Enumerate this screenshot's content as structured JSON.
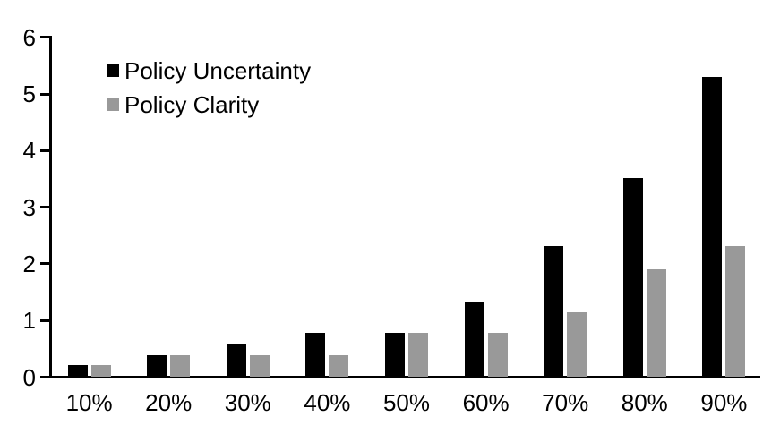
{
  "chart_data": {
    "type": "bar",
    "title": "",
    "xlabel": "",
    "ylabel": "",
    "categories": [
      "10%",
      "20%",
      "30%",
      "40%",
      "50%",
      "60%",
      "70%",
      "80%",
      "90%"
    ],
    "series": [
      {
        "name": "Policy Uncertainty",
        "color": "#000000",
        "values": [
          0.2,
          0.38,
          0.57,
          0.77,
          0.78,
          1.33,
          2.3,
          3.5,
          5.3
        ]
      },
      {
        "name": "Policy Clarity",
        "color": "#999999",
        "values": [
          0.2,
          0.38,
          0.38,
          0.38,
          0.77,
          0.77,
          1.13,
          1.9,
          2.3
        ]
      }
    ],
    "ylim": [
      0,
      6
    ],
    "yticks": [
      "0",
      "1",
      "2",
      "3",
      "4",
      "5",
      "6"
    ],
    "grid": false,
    "legend_position": "top-left",
    "axis_color": "#000000",
    "background_color": "#ffffff"
  }
}
